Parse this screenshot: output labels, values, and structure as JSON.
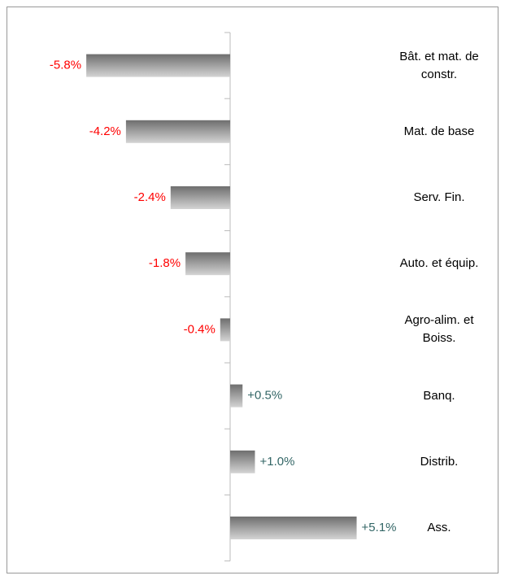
{
  "chart_data": {
    "type": "hbar",
    "categories": [
      "Bât. et mat. de\nconstr.",
      "Mat. de base",
      "Serv. Fin.",
      "Auto. et équip.",
      "Agro-alim. et\nBoiss.",
      "Banq.",
      "Distrib.",
      "Ass."
    ],
    "values": [
      -5.8,
      -4.2,
      -2.4,
      -1.8,
      -0.4,
      0.5,
      1.0,
      5.1
    ],
    "value_labels": [
      "-5.8%",
      "-4.2%",
      "-2.4%",
      "-1.8%",
      "-0.4%",
      "+0.5%",
      "+1.0%",
      "+5.1%"
    ],
    "color": "#888888",
    "negative_label_color": "#ff0000",
    "positive_label_color": "#336666"
  }
}
